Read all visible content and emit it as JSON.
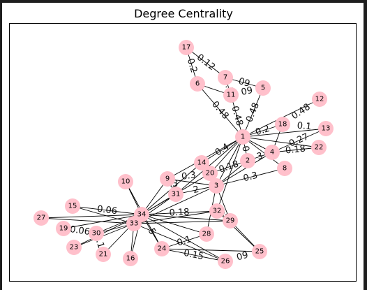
{
  "title": "Degree Centrality",
  "graph": {
    "nodes": [
      "1",
      "2",
      "3",
      "4",
      "5",
      "6",
      "7",
      "8",
      "9",
      "10",
      "11",
      "12",
      "13",
      "14",
      "15",
      "16",
      "17",
      "18",
      "19",
      "20",
      "21",
      "22",
      "23",
      "24",
      "25",
      "26",
      "27",
      "28",
      "29",
      "30",
      "31",
      "32",
      "33",
      "34"
    ],
    "edges": [
      [
        "17",
        "6"
      ],
      [
        "17",
        "7"
      ],
      [
        "7",
        "11"
      ],
      [
        "6",
        "11"
      ],
      [
        "6",
        "1"
      ],
      [
        "11",
        "1"
      ],
      [
        "5",
        "1"
      ],
      [
        "7",
        "5"
      ],
      [
        "12",
        "1"
      ],
      [
        "18",
        "1"
      ],
      [
        "13",
        "1"
      ],
      [
        "22",
        "1"
      ],
      [
        "4",
        "1"
      ],
      [
        "8",
        "1"
      ],
      [
        "18",
        "4"
      ],
      [
        "13",
        "4"
      ],
      [
        "22",
        "4"
      ],
      [
        "1",
        "2"
      ],
      [
        "1",
        "3"
      ],
      [
        "1",
        "20"
      ],
      [
        "1",
        "14"
      ],
      [
        "1",
        "9"
      ],
      [
        "1",
        "31"
      ],
      [
        "1",
        "32"
      ],
      [
        "2",
        "4"
      ],
      [
        "2",
        "3"
      ],
      [
        "2",
        "20"
      ],
      [
        "3",
        "4"
      ],
      [
        "3",
        "8"
      ],
      [
        "3",
        "14"
      ],
      [
        "3",
        "20"
      ],
      [
        "3",
        "9"
      ],
      [
        "3",
        "31"
      ],
      [
        "3",
        "33"
      ],
      [
        "3",
        "28"
      ],
      [
        "3",
        "29"
      ],
      [
        "9",
        "34"
      ],
      [
        "9",
        "31"
      ],
      [
        "10",
        "34"
      ],
      [
        "10",
        "24"
      ],
      [
        "14",
        "34"
      ],
      [
        "20",
        "34"
      ],
      [
        "31",
        "34"
      ],
      [
        "31",
        "33"
      ],
      [
        "15",
        "34"
      ],
      [
        "15",
        "33"
      ],
      [
        "27",
        "34"
      ],
      [
        "27",
        "33"
      ],
      [
        "19",
        "34"
      ],
      [
        "30",
        "34"
      ],
      [
        "23",
        "34"
      ],
      [
        "23",
        "33"
      ],
      [
        "21",
        "34"
      ],
      [
        "16",
        "34"
      ],
      [
        "16",
        "33"
      ],
      [
        "24",
        "34"
      ],
      [
        "24",
        "28"
      ],
      [
        "24",
        "26"
      ],
      [
        "32",
        "34"
      ],
      [
        "32",
        "33"
      ],
      [
        "29",
        "34"
      ],
      [
        "29",
        "32"
      ],
      [
        "29",
        "33"
      ],
      [
        "28",
        "34"
      ],
      [
        "25",
        "32"
      ],
      [
        "25",
        "29"
      ],
      [
        "26",
        "33"
      ],
      [
        "26",
        "34"
      ],
      [
        "30",
        "33"
      ],
      [
        "24",
        "25"
      ],
      [
        "34",
        "33"
      ]
    ],
    "edge_labels": [
      {
        "edge": [
          "17",
          "6"
        ],
        "text": "0.2"
      },
      {
        "edge": [
          "17",
          "7"
        ],
        "text": "0.12"
      },
      {
        "edge": [
          "7",
          "11"
        ],
        "text": "0.1"
      },
      {
        "edge": [
          "7",
          "5"
        ],
        "text": "09"
      },
      {
        "edge": [
          "11",
          "5"
        ],
        "text": "09"
      },
      {
        "edge": [
          "6",
          "1"
        ],
        "text": "0.48"
      },
      {
        "edge": [
          "11",
          "1"
        ],
        "text": "0.48"
      },
      {
        "edge": [
          "5",
          "1"
        ],
        "text": "0.48"
      },
      {
        "edge": [
          "12",
          "18"
        ],
        "text": "0.48"
      },
      {
        "edge": [
          "1",
          "18"
        ],
        "text": "0.2"
      },
      {
        "edge": [
          "18",
          "13"
        ],
        "text": "0.1"
      },
      {
        "edge": [
          "4",
          "13"
        ],
        "text": "0.27"
      },
      {
        "edge": [
          "4",
          "22"
        ],
        "text": "0.18"
      },
      {
        "edge": [
          "1",
          "2"
        ],
        "text": "0"
      },
      {
        "edge": [
          "2",
          "20"
        ],
        "text": "0.18"
      },
      {
        "edge": [
          "14",
          "1"
        ],
        "text": "0.4"
      },
      {
        "edge": [
          "2",
          "4"
        ],
        "text": "3"
      },
      {
        "edge": [
          "3",
          "8"
        ],
        "text": "0.3"
      },
      {
        "edge": [
          "10",
          "3"
        ],
        "text": "0.3"
      },
      {
        "edge": [
          "9",
          "20"
        ],
        "text": "0.3"
      },
      {
        "edge": [
          "31",
          "3"
        ],
        "text": "2"
      },
      {
        "edge": [
          "15",
          "34"
        ],
        "text": "0.06"
      },
      {
        "edge": [
          "34",
          "32"
        ],
        "text": "0.18"
      },
      {
        "edge": [
          "19",
          "30"
        ],
        "text": "0.06"
      },
      {
        "edge": [
          "30",
          "21"
        ],
        "text": "0.15"
      },
      {
        "edge": [
          "24",
          "28"
        ],
        "text": "0.1"
      },
      {
        "edge": [
          "26",
          "25"
        ],
        "text": "09"
      },
      {
        "edge": [
          "24",
          "26"
        ],
        "text": "0.15"
      },
      {
        "edge": [
          "32",
          "29"
        ],
        "text": "09"
      },
      {
        "edge": [
          "34",
          "24"
        ],
        "text": "5"
      }
    ]
  }
}
